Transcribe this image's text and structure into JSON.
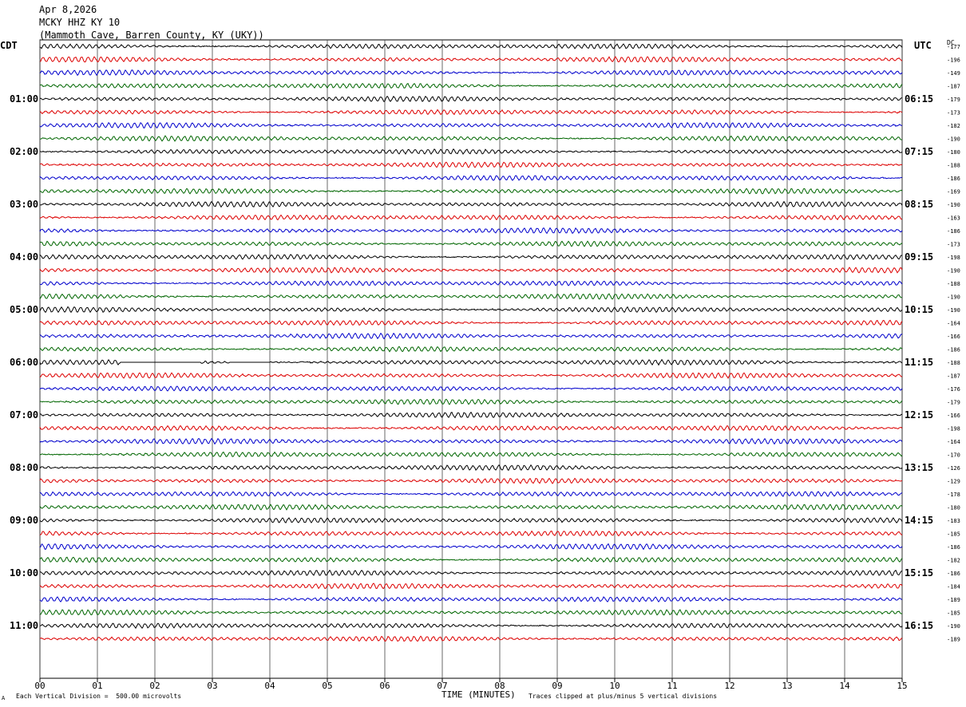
{
  "header": {
    "date": "Apr 8,2026",
    "station": "MCKY HHZ KY 10",
    "location": "(Mammoth Cave, Barren County, KY (UKY))"
  },
  "tz_left": "CDT",
  "tz_right": "UTC",
  "dc_label": "DC",
  "footer": {
    "scale_text": "Each Vertical Division =  500.00 microvolts",
    "xaxis_title": "TIME (MINUTES)",
    "clip_text": "Traces clipped at plus/minus 5 vertical divisions",
    "corner": "A"
  },
  "chart_data": {
    "type": "line",
    "title": "MCKY HHZ KY 10",
    "xlabel": "TIME (MINUTES)",
    "xlim": [
      0,
      15
    ],
    "x_ticks": [
      "00",
      "01",
      "02",
      "03",
      "04",
      "05",
      "06",
      "07",
      "08",
      "09",
      "10",
      "11",
      "12",
      "13",
      "14",
      "15"
    ],
    "trace_colors": [
      "#000000",
      "#dd0000",
      "#0000cc",
      "#006600"
    ],
    "left_hour_labels": [
      "01:00",
      "02:00",
      "03:00",
      "04:00",
      "05:00",
      "06:00",
      "07:00",
      "08:00",
      "09:00",
      "10:00",
      "11:00"
    ],
    "right_hour_labels": [
      "06:15",
      "07:15",
      "08:15",
      "09:15",
      "10:15",
      "11:15",
      "12:15",
      "13:15",
      "14:15",
      "15:15",
      "16:15"
    ],
    "dc_offsets": [
      "-177",
      "-196",
      "-149",
      "-187",
      "-179",
      "-173",
      "-182",
      "-190",
      "-180",
      "-188",
      "-186",
      "-169",
      "-190",
      "-163",
      "-186",
      "-173",
      "-198",
      "-190",
      "-188",
      "-190",
      "-190",
      "-164",
      "-166",
      "-186",
      "-188",
      "-187",
      "-176",
      "-179",
      "-166",
      "-198",
      "-164",
      "-170",
      "-126",
      "-129",
      "-178",
      "-180",
      "-183",
      "-185",
      "-186",
      "-182",
      "-186",
      "-184",
      "-189",
      "-185",
      "-190",
      "-189"
    ],
    "gap_segments": [
      {
        "row": 24,
        "from_minute": 1.4,
        "to_minute": 2.8
      },
      {
        "row": 24,
        "from_minute": 3.3,
        "to_minute": 4.0
      }
    ]
  }
}
